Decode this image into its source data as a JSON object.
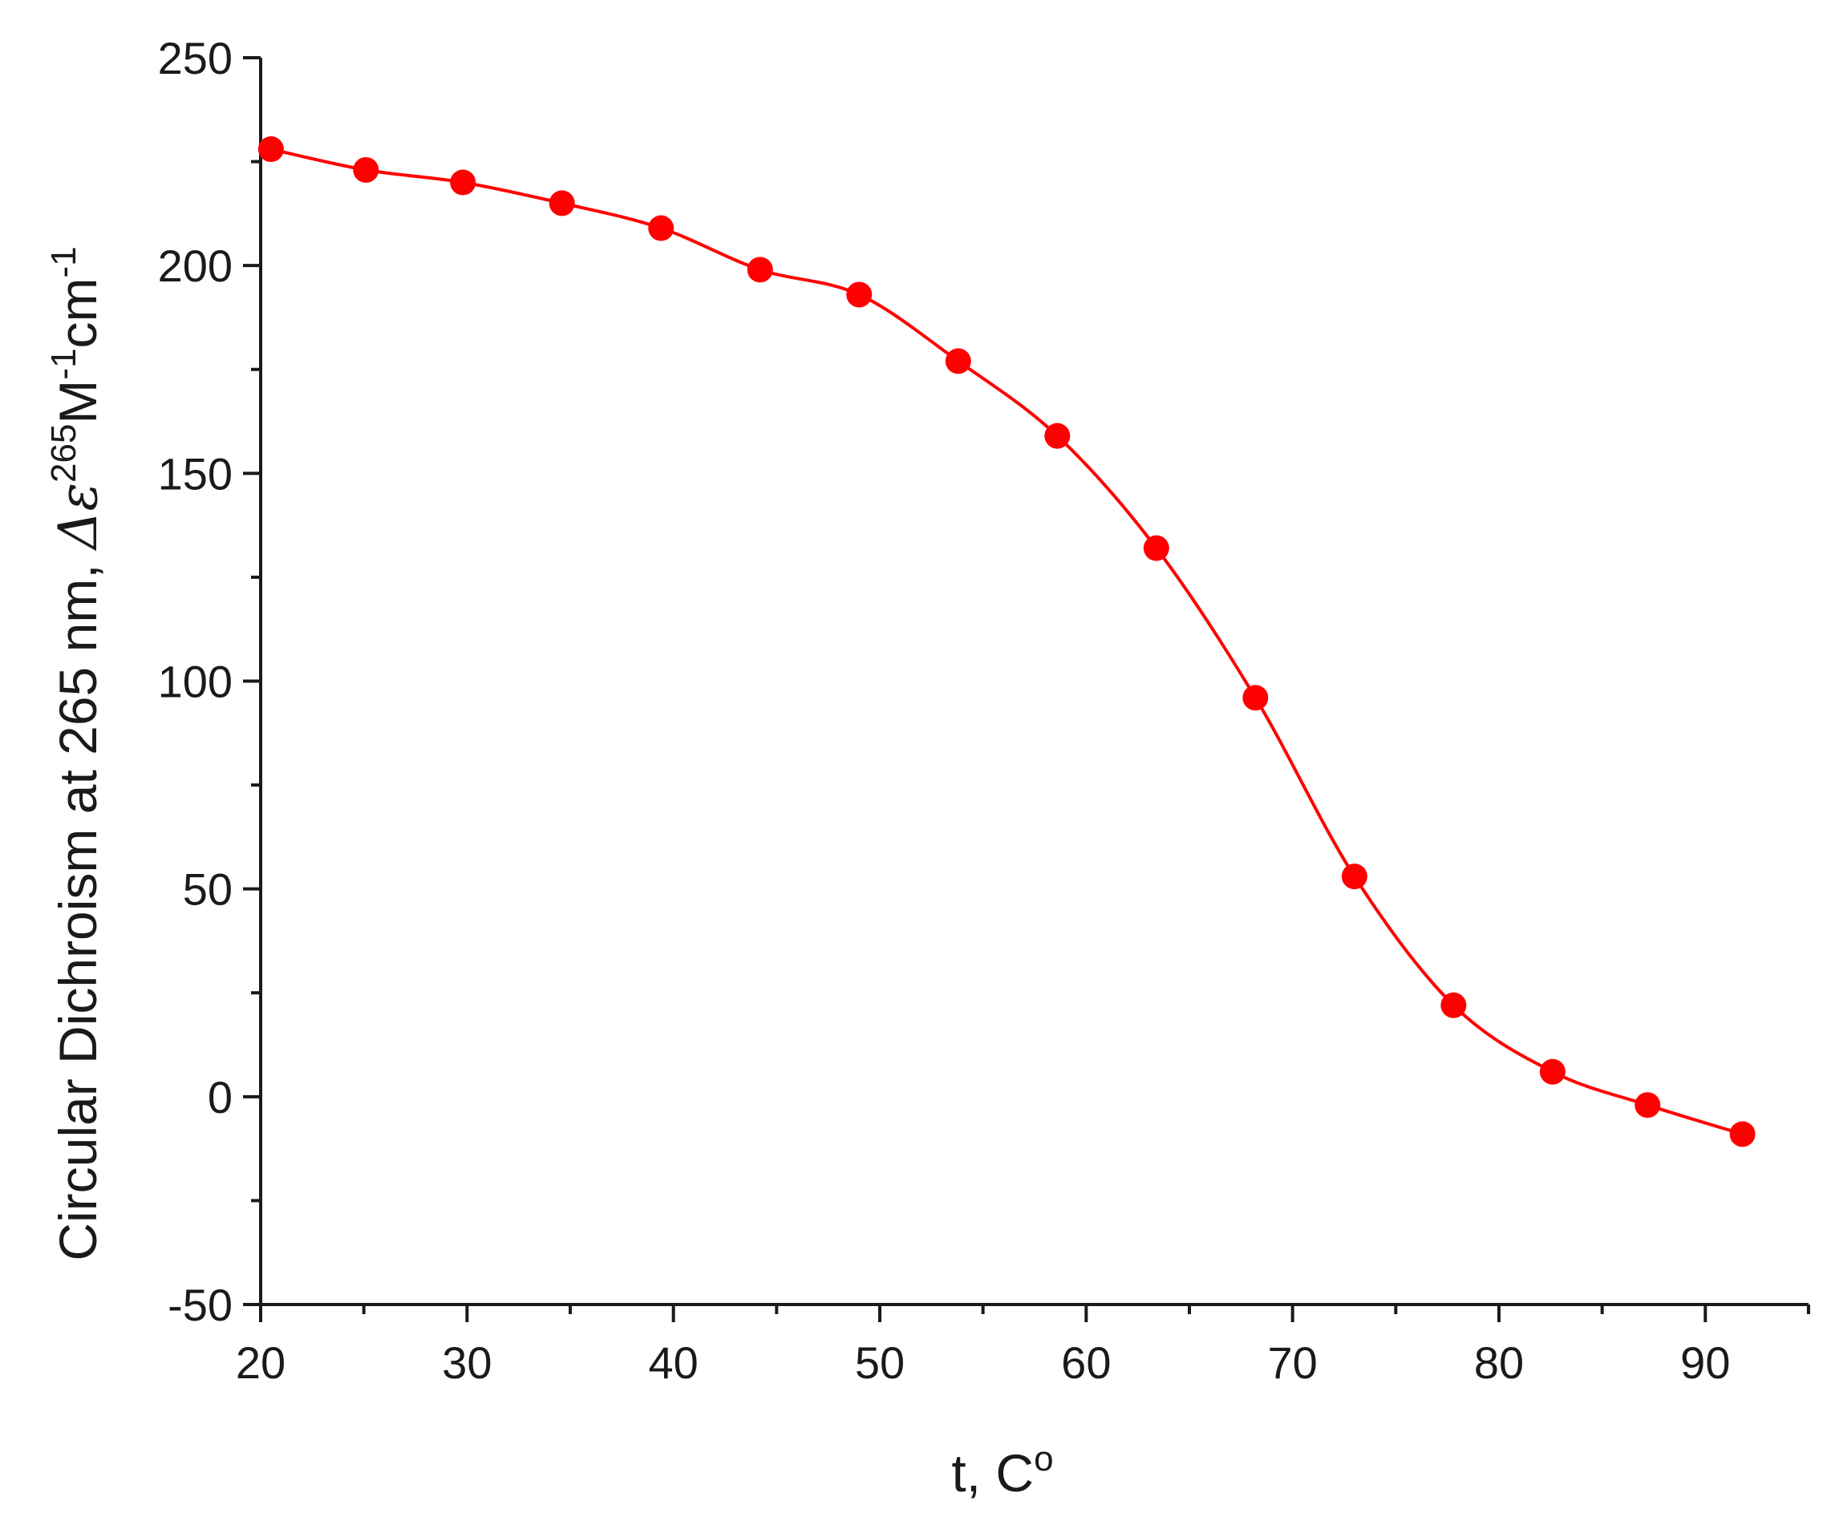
{
  "chart_data": {
    "type": "line",
    "title": "",
    "xlabel": {
      "main": "t, C",
      "sup": "o"
    },
    "ylabel": {
      "prefix": "Circular Dichroism at 265 nm, ",
      "delta": "Δε",
      "sup1": "265",
      "unit1": "M",
      "sup2": "-1",
      "unit2": "cm",
      "sup3": "-1"
    },
    "xlim": [
      20,
      95
    ],
    "ylim": [
      -50,
      250
    ],
    "x_ticks_major": [
      20,
      30,
      40,
      50,
      60,
      70,
      80,
      90
    ],
    "x_ticks_minor": [
      25,
      35,
      45,
      55,
      65,
      75,
      85,
      95
    ],
    "y_ticks_major": [
      -50,
      0,
      50,
      100,
      150,
      200,
      250
    ],
    "y_ticks_minor": [
      -25,
      25,
      75,
      125,
      175,
      225
    ],
    "grid": false,
    "series": [
      {
        "color": "#ff0000",
        "marker": "circle",
        "x": [
          20.5,
          25.1,
          29.8,
          34.6,
          39.4,
          44.2,
          49.0,
          53.8,
          58.6,
          63.4,
          68.2,
          73.0,
          77.8,
          82.6,
          87.2,
          91.8
        ],
        "y": [
          228,
          223,
          220,
          215,
          209,
          199,
          193,
          177,
          159,
          132,
          96,
          53,
          22,
          6,
          -2,
          -9
        ]
      }
    ]
  }
}
